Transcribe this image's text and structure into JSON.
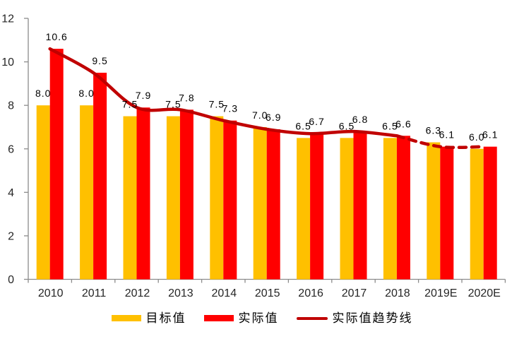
{
  "chart_data": {
    "type": "bar",
    "title": "",
    "xlabel": "",
    "ylabel": "",
    "categories": [
      "2010",
      "2011",
      "2012",
      "2013",
      "2014",
      "2015",
      "2016",
      "2017",
      "2018",
      "2019E",
      "2020E"
    ],
    "series": [
      {
        "name": "目标值",
        "type": "bar",
        "color": "#FFC000",
        "values": [
          8.0,
          8.0,
          7.5,
          7.5,
          7.5,
          7.0,
          6.5,
          6.5,
          6.5,
          6.3,
          6.0
        ]
      },
      {
        "name": "实际值",
        "type": "bar",
        "color": "#FF0000",
        "values": [
          10.6,
          9.5,
          7.9,
          7.8,
          7.3,
          6.9,
          6.7,
          6.8,
          6.6,
          6.1,
          6.1
        ]
      },
      {
        "name": "实际值趋势线",
        "type": "line",
        "color": "#C00000",
        "values": [
          10.6,
          9.5,
          7.9,
          7.8,
          7.3,
          6.9,
          6.7,
          6.8,
          6.6,
          6.1,
          6.1
        ],
        "solid_through_category": "2018",
        "dashed_from_category": "2018"
      }
    ],
    "ylim": [
      0,
      12
    ],
    "yticks": [
      0,
      2,
      4,
      6,
      8,
      10,
      12
    ],
    "grid": false,
    "data_labels": true,
    "label_decimals": 1,
    "legend_position": "bottom"
  },
  "style_colors": {
    "axis_line": "#8c8c8c",
    "axis_text": "#262626",
    "data_label_text": "#000000",
    "background": "#ffffff"
  }
}
